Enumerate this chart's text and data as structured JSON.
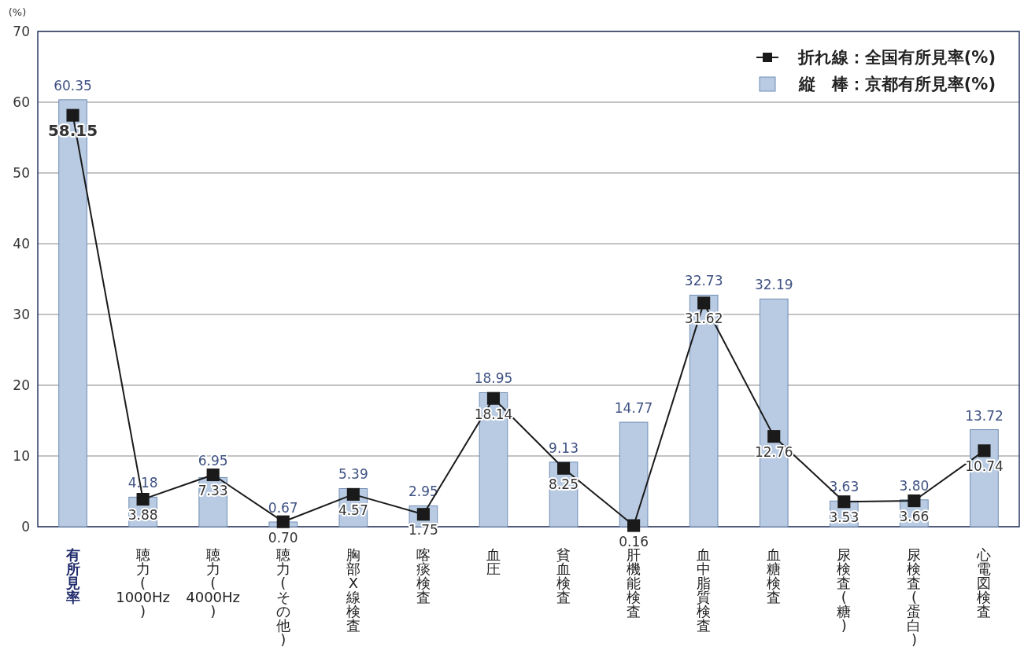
{
  "chart_data": {
    "type": "bar",
    "ylabel": "(%)",
    "categories": [
      "有所見率",
      "聴力(1000Hz)",
      "聴力(4000Hz)",
      "聴力(その他)",
      "胸部X線検査",
      "喀痰検査",
      "血圧",
      "貧血検査",
      "肝機能検査",
      "血中脂質検査",
      "血糖検査",
      "尿検査(糖)",
      "尿検査(蛋白)",
      "心電図検査"
    ],
    "series": [
      {
        "name": "縦　棒：京都有所見率(%)",
        "color": "#b9cbe2",
        "values": [
          60.35,
          4.18,
          6.95,
          0.67,
          5.39,
          2.95,
          18.95,
          9.13,
          14.77,
          32.73,
          32.19,
          3.63,
          3.8,
          13.72
        ],
        "value_labels": [
          "60.35",
          "4.18",
          "6.95",
          "0.67",
          "5.39",
          "2.95",
          "18.95",
          "9.13",
          "14.77",
          "32.73",
          "32.19",
          "3.63",
          "3.80",
          "13.72"
        ]
      },
      {
        "name": "折れ線：全国有所見率(%)",
        "type": "line",
        "color": "#1a1a1a",
        "marker": "square",
        "values": [
          58.15,
          3.88,
          7.33,
          0.7,
          4.57,
          1.75,
          18.14,
          8.25,
          0.16,
          31.62,
          12.76,
          3.53,
          3.66,
          10.74
        ],
        "value_labels": [
          "58.15",
          "3.88",
          "7.33",
          "0.70",
          "4.57",
          "1.75",
          "18.14",
          "8.25",
          "0.16",
          "31.62",
          "12.76",
          "3.53",
          "3.66",
          "10.74"
        ]
      }
    ],
    "ylim": [
      0,
      70
    ],
    "yticks": [
      0,
      10,
      20,
      30,
      40,
      50,
      60,
      70
    ],
    "grid": "y",
    "legend": "top right"
  }
}
